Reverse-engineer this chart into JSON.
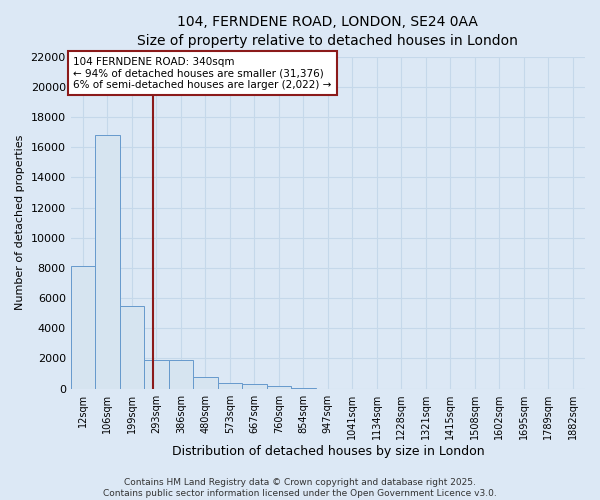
{
  "title_line1": "104, FERNDENE ROAD, LONDON, SE24 0AA",
  "title_line2": "Size of property relative to detached houses in London",
  "xlabel": "Distribution of detached houses by size in London",
  "ylabel": "Number of detached properties",
  "bar_labels": [
    "12sqm",
    "106sqm",
    "199sqm",
    "293sqm",
    "386sqm",
    "480sqm",
    "573sqm",
    "667sqm",
    "760sqm",
    "854sqm",
    "947sqm",
    "1041sqm",
    "1134sqm",
    "1228sqm",
    "1321sqm",
    "1415sqm",
    "1508sqm",
    "1602sqm",
    "1695sqm",
    "1789sqm",
    "1882sqm"
  ],
  "bar_values": [
    8100,
    16800,
    5500,
    1900,
    1900,
    750,
    400,
    300,
    150,
    50,
    0,
    0,
    0,
    0,
    0,
    0,
    0,
    0,
    0,
    0,
    0
  ],
  "bar_color": "#d6e4f0",
  "bar_edge_color": "#6699cc",
  "grid_color": "#c5d8ea",
  "vline_x": 2.85,
  "vline_color": "#8b1a1a",
  "annotation_text": "104 FERNDENE ROAD: 340sqm\n← 94% of detached houses are smaller (31,376)\n6% of semi-detached houses are larger (2,022) →",
  "annotation_box_color": "#ffffff",
  "annotation_border_color": "#8b1a1a",
  "ylim": [
    0,
    22000
  ],
  "yticks": [
    0,
    2000,
    4000,
    6000,
    8000,
    10000,
    12000,
    14000,
    16000,
    18000,
    20000,
    22000
  ],
  "footer_text": "Contains HM Land Registry data © Crown copyright and database right 2025.\nContains public sector information licensed under the Open Government Licence v3.0.",
  "bg_color": "#dce8f5"
}
